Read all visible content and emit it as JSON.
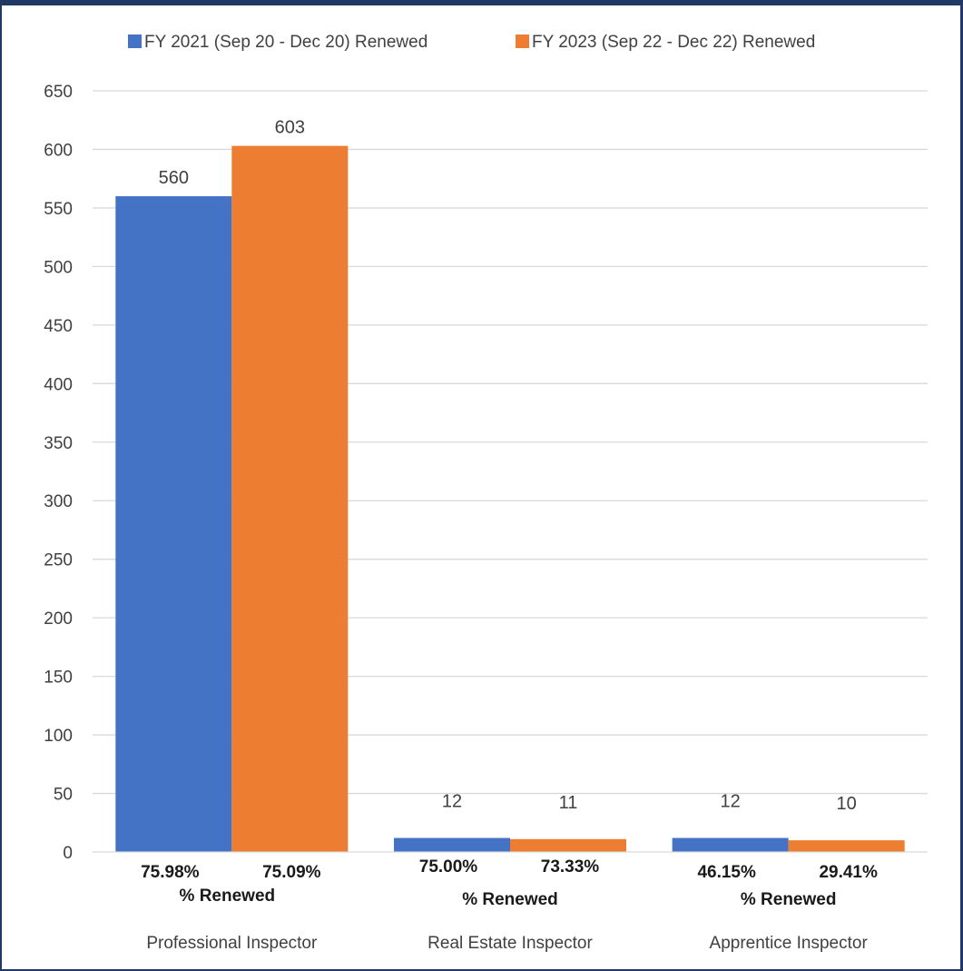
{
  "chart_data": {
    "type": "bar",
    "title": "",
    "xlabel": "",
    "ylabel": "",
    "ylim": [
      0,
      650
    ],
    "yticks": [
      0,
      50,
      100,
      150,
      200,
      250,
      300,
      350,
      400,
      450,
      500,
      550,
      600,
      650
    ],
    "grid": true,
    "legend_position": "top",
    "categories": [
      "Professional Inspector",
      "Real Estate Inspector",
      "Apprentice Inspector"
    ],
    "series": [
      {
        "name": "FY 2021 (Sep 20 - Dec 20) Renewed",
        "color": "#4472c4",
        "values": [
          560,
          12,
          12
        ],
        "pct_renewed": [
          "75.98%",
          "75.00%",
          "46.15%"
        ]
      },
      {
        "name": "FY 2023 (Sep 22 - Dec 22) Renewed",
        "color": "#ed7d31",
        "values": [
          603,
          11,
          10
        ],
        "pct_renewed": [
          "75.09%",
          "73.33%",
          "29.41%"
        ]
      }
    ],
    "category_note": "% Renewed"
  }
}
